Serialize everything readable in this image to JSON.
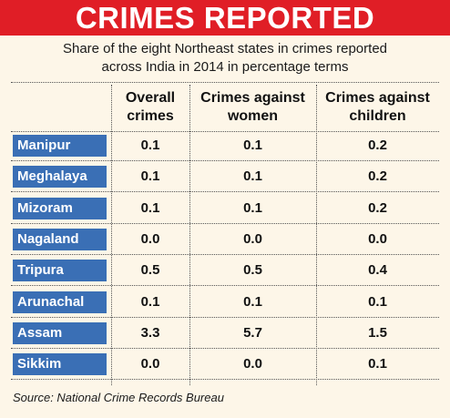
{
  "chart_data": {
    "type": "table",
    "title": "CRIMES REPORTED",
    "subtitle_lines": [
      "Share of the eight Northeast states in crimes reported",
      "across India in 2014 in percentage terms"
    ],
    "columns": [
      "Overall crimes",
      "Crimes against women",
      "Crimes against children"
    ],
    "column_lines": [
      [
        "Overall",
        "crimes"
      ],
      [
        "Crimes against",
        "women"
      ],
      [
        "Crimes against",
        "children"
      ]
    ],
    "rows": [
      {
        "state": "Manipur",
        "values": [
          "0.1",
          "0.1",
          "0.2"
        ]
      },
      {
        "state": "Meghalaya",
        "values": [
          "0.1",
          "0.1",
          "0.2"
        ]
      },
      {
        "state": "Mizoram",
        "values": [
          "0.1",
          "0.1",
          "0.2"
        ]
      },
      {
        "state": "Nagaland",
        "values": [
          "0.0",
          "0.0",
          "0.0"
        ]
      },
      {
        "state": "Tripura",
        "values": [
          "0.5",
          "0.5",
          "0.4"
        ]
      },
      {
        "state": "Arunachal",
        "values": [
          "0.1",
          "0.1",
          "0.1"
        ]
      },
      {
        "state": "Assam",
        "values": [
          "3.3",
          "5.7",
          "1.5"
        ]
      },
      {
        "state": "Sikkim",
        "values": [
          "0.0",
          "0.0",
          "0.1"
        ]
      }
    ],
    "source": "Source: National Crime Records Bureau",
    "colors": {
      "title_background": "#e01e26",
      "state_label_background": "#3a6fb5",
      "panel_background": "#fdf6e8"
    }
  }
}
